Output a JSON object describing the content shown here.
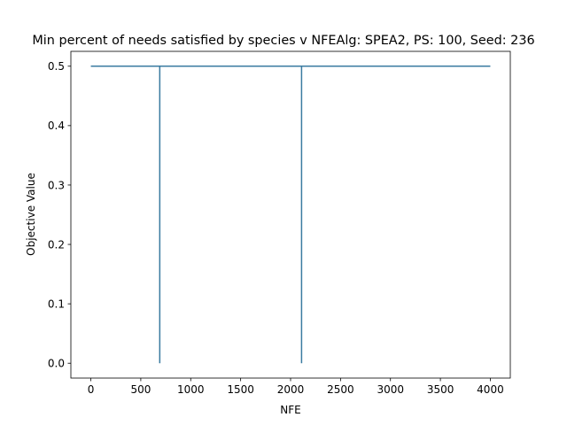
{
  "chart_data": {
    "type": "line",
    "title": "Min percent of needs satisfied by species v NFEAlg: SPEA2, PS: 100, Seed: 236",
    "xlabel": "NFE",
    "ylabel": "Objective Value",
    "xlim": [
      -200,
      4200
    ],
    "ylim": [
      -0.025,
      0.525
    ],
    "x_ticks": [
      0,
      500,
      1000,
      1500,
      2000,
      2500,
      3000,
      3500,
      4000
    ],
    "y_ticks": [
      0.0,
      0.1,
      0.2,
      0.3,
      0.4,
      0.5
    ],
    "x_tick_labels": [
      "0",
      "500",
      "1000",
      "1500",
      "2000",
      "2500",
      "3000",
      "3500",
      "4000"
    ],
    "y_tick_labels": [
      "0.0",
      "0.1",
      "0.2",
      "0.3",
      "0.4",
      "0.5"
    ],
    "grid": false,
    "series": [
      {
        "color": "#3a7ba0",
        "points": [
          [
            0,
            0.5
          ],
          [
            690,
            0.5
          ],
          [
            690,
            0.0
          ],
          [
            690,
            0.5
          ],
          [
            2110,
            0.5
          ],
          [
            2110,
            0.0
          ],
          [
            2110,
            0.5
          ],
          [
            4000,
            0.5
          ]
        ]
      }
    ]
  }
}
